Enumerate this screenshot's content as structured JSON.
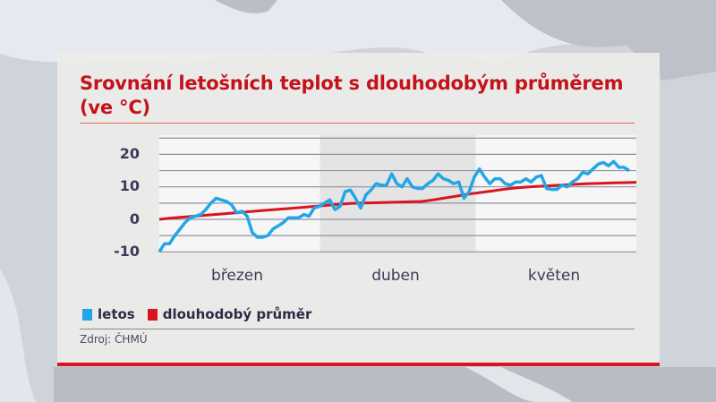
{
  "title": "Srovnání letošních teplot s dlouhodobým průměrem (ve °C)",
  "legend": [
    {
      "label": "letos",
      "color": "#22a6e8"
    },
    {
      "label": "dlouhodobý průměr",
      "color": "#d8151e"
    }
  ],
  "source": "Zdroj: ČHMÚ",
  "chart_data": {
    "type": "line",
    "title": "Srovnání letošních teplot s dlouhodobým průměrem (ve °C)",
    "xlabel": "",
    "ylabel": "°C",
    "ylim": [
      -10,
      25
    ],
    "yticks": [
      -10,
      0,
      10,
      20
    ],
    "minor_grid_step": 5,
    "grid": true,
    "legend_position": "bottom-left",
    "categories": [
      "březen",
      "duben",
      "květen"
    ],
    "month_days": [
      31,
      30,
      31
    ],
    "series": [
      {
        "name": "letos",
        "color": "#22a6e8",
        "values": [
          -10,
          -7.5,
          -7.5,
          -5,
          -3,
          -1,
          0.5,
          1,
          1.5,
          3,
          5,
          6.5,
          6,
          5.5,
          4.5,
          2,
          2.5,
          1,
          -4,
          -5.5,
          -5.5,
          -5,
          -3,
          -2,
          -1,
          0.5,
          0.5,
          0.5,
          1.5,
          1,
          3.5,
          4,
          5,
          6,
          3,
          4,
          8.5,
          9,
          6.5,
          3.5,
          7.5,
          9,
          11,
          10.5,
          10.5,
          14,
          11,
          10,
          12.5,
          10,
          9.5,
          9.5,
          11,
          12,
          14,
          12.5,
          12,
          11,
          11.5,
          6.5,
          8.5,
          13,
          15.5,
          13,
          11,
          12.5,
          12.5,
          11,
          10.5,
          11.5,
          11.5,
          12.5,
          11.5,
          13,
          13.5,
          9.5,
          9.2,
          9.2,
          10.5,
          10,
          11.5,
          12.5,
          14.5,
          14,
          15.5,
          17,
          17.5,
          16.5,
          17.8,
          16,
          16,
          15
        ]
      },
      {
        "name": "dlouhodobý průměr",
        "color": "#d8151e",
        "values": [
          0,
          0.4,
          0.7,
          1.0,
          1.3,
          1.6,
          1.9,
          2.2,
          2.5,
          2.8,
          3.1,
          3.4,
          3.7,
          4.0,
          4.3,
          4.6,
          4.9,
          5.0,
          5.1,
          5.2,
          5.3,
          5.4,
          5.5,
          6.0,
          6.6,
          7.2,
          7.8,
          8.3,
          8.8,
          9.3,
          9.7,
          10.0,
          10.2,
          10.4,
          10.6,
          10.8,
          11.0,
          11.1,
          11.2,
          11.3,
          11.4
        ]
      }
    ],
    "series_note": "letos = daily values Mar 1 – May 31 (approx.); dlouhodobý průměr sampled evenly across same span (approx.)"
  }
}
